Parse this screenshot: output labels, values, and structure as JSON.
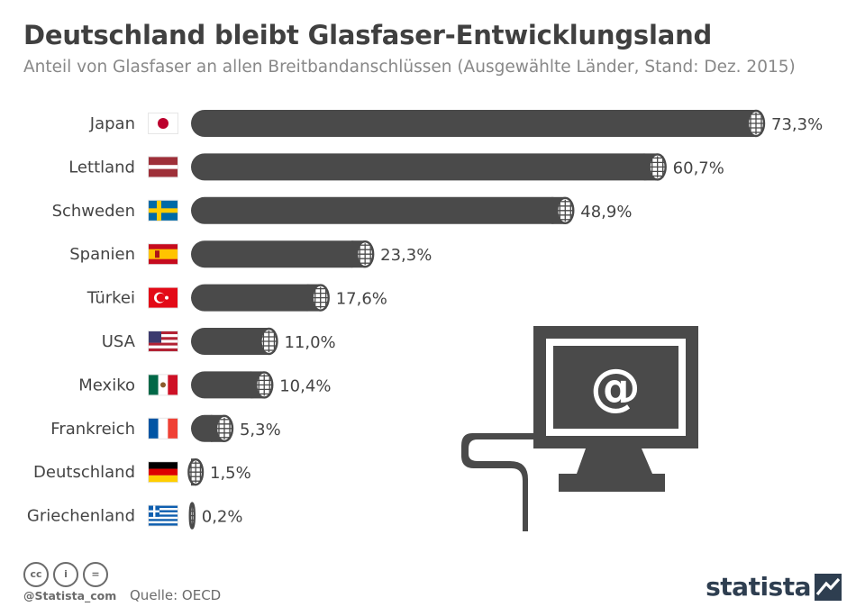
{
  "header": {
    "title": "Deutschland bleibt Glasfaser-Entwicklungsland",
    "subtitle": "Anteil von Glasfaser an allen Breitbandanschlüssen (Ausgewählte Länder, Stand: Dez. 2015)"
  },
  "chart_data": {
    "type": "bar",
    "orientation": "horizontal",
    "title": "Deutschland bleibt Glasfaser-Entwicklungsland",
    "subtitle": "Anteil von Glasfaser an allen Breitbandanschlüssen (Ausgewählte Länder, Stand: Dez. 2015)",
    "categories": [
      "Japan",
      "Lettland",
      "Schweden",
      "Spanien",
      "Türkei",
      "USA",
      "Mexiko",
      "Frankreich",
      "Deutschland",
      "Griechenland"
    ],
    "values": [
      73.3,
      60.7,
      48.9,
      23.3,
      17.6,
      11.0,
      10.4,
      5.3,
      1.5,
      0.2
    ],
    "value_labels": [
      "73,3%",
      "60,7%",
      "48,9%",
      "23,3%",
      "17,6%",
      "11,0%",
      "10,4%",
      "5,3%",
      "1,5%",
      "0,2%"
    ],
    "flag_icons": [
      "japan-flag-icon",
      "latvia-flag-icon",
      "sweden-flag-icon",
      "spain-flag-icon",
      "turkey-flag-icon",
      "usa-flag-icon",
      "mexico-flag-icon",
      "france-flag-icon",
      "germany-flag-icon",
      "greece-flag-icon"
    ],
    "unit": "%",
    "xlim": [
      0,
      73.3
    ],
    "grid": false,
    "bar_style": "fiber-optic-cable",
    "colors": {
      "bar": "#4a4a4a",
      "text": "#444444"
    }
  },
  "illustration": {
    "icon": "computer-monitor-at-sign-icon",
    "glyph": "@"
  },
  "footer": {
    "license_icons": [
      "cc-icon",
      "attribution-icon",
      "no-derivatives-icon"
    ],
    "cc_glyphs": [
      "cc",
      "i",
      "="
    ],
    "handle": "@Statista_com",
    "source": "Quelle: OECD",
    "brand": "statista",
    "brand_color": "#2e3e50"
  }
}
